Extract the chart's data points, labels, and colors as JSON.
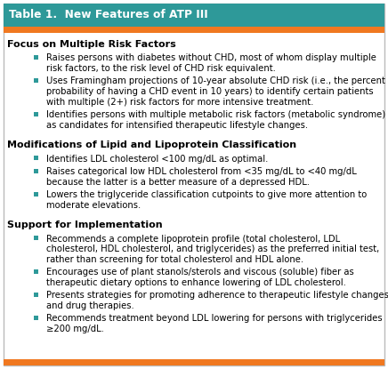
{
  "title": "Table 1.  New Features of ATP III",
  "title_bg_color": "#2E9999",
  "orange_bar_color": "#F07820",
  "bottom_bar_color": "#F07820",
  "bg_color": "#FFFFFF",
  "border_color": "#BBBBBB",
  "bullet_color": "#2E9999",
  "sections": [
    {
      "header": "Focus on Multiple Risk Factors",
      "bullets": [
        "Raises persons with diabetes without CHD, most of whom display multiple\nrisk factors, to the risk level of CHD risk equivalent.",
        "Uses Framingham projections of 10-year absolute CHD risk (i.e., the percent\nprobability of having a CHD event in 10 years) to identify certain patients\nwith multiple (2+) risk factors for more intensive treatment.",
        "Identifies persons with multiple metabolic risk factors (metabolic syndrome)\nas candidates for intensified therapeutic lifestyle changes."
      ]
    },
    {
      "header": "Modifications of Lipid and Lipoprotein Classification",
      "bullets": [
        "Identifies LDL cholesterol <100 mg/dL as optimal.",
        "Raises categorical low HDL cholesterol from <35 mg/dL to <40 mg/dL\nbecause the latter is a better measure of a depressed HDL.",
        "Lowers the triglyceride classification cutpoints to give more attention to\nmoderate elevations."
      ]
    },
    {
      "header": "Support for Implementation",
      "bullets": [
        "Recommends a complete lipoprotein profile (total cholesterol, LDL\ncholesterol, HDL cholesterol, and triglycerides) as the preferred initial test,\nrather than screening for total cholesterol and HDL alone.",
        "Encourages use of plant stanols/sterols and viscous (soluble) fiber as\ntherapeutic dietary options to enhance lowering of LDL cholesterol.",
        "Presents strategies for promoting adherence to therapeutic lifestyle changes\nand drug therapies.",
        "Recommends treatment beyond LDL lowering for persons with triglycerides\n≥200 mg/dL."
      ]
    }
  ],
  "font_size_title": 8.8,
  "font_size_header": 8.0,
  "font_size_bullet": 7.2
}
